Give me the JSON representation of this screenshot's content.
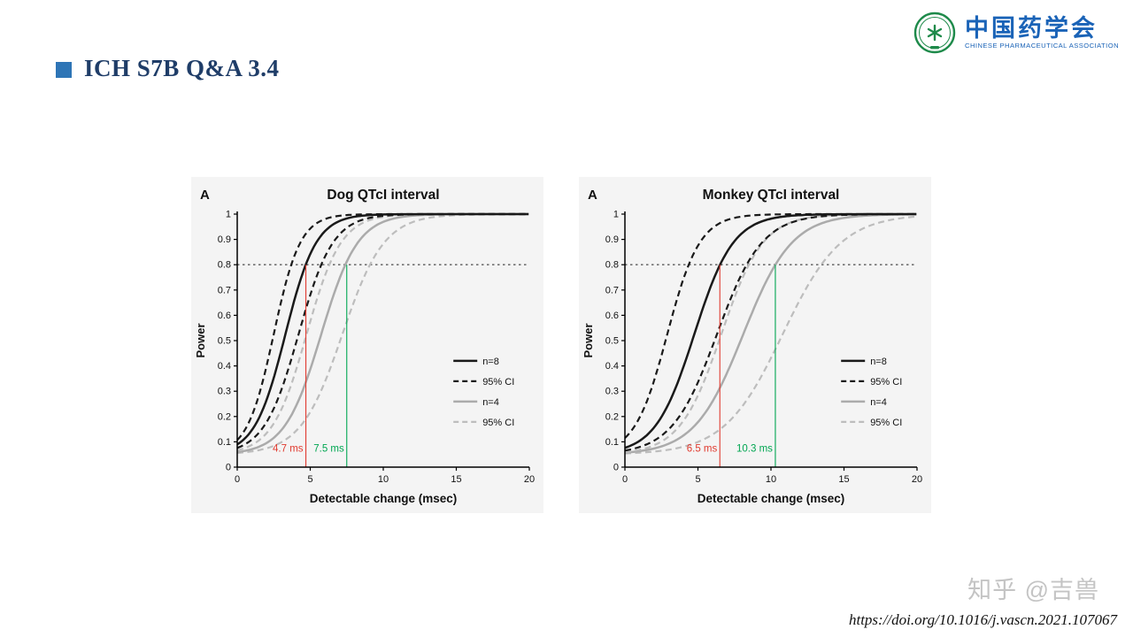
{
  "slide": {
    "heading": "ICH S7B Q&A 3.4"
  },
  "logo": {
    "org_cn": "中国药学会",
    "org_en": "CHINESE PHARMACEUTICAL ASSOCIATION"
  },
  "watermark": "知乎 @吉兽",
  "citation": "https://doi.org/10.1016/j.vascn.2021.107067",
  "colors": {
    "heading_text": "#1f3d68",
    "bullet": "#2e75b6",
    "logo_blue": "#1a63b7",
    "logo_green": "#1e8a4a",
    "watermark_gray": "#c4c4c4",
    "panel_bg": "#f4f4f4",
    "annotation_red": "#e03a2f",
    "annotation_green": "#00a651"
  },
  "chart_data": [
    {
      "type": "line",
      "panel_label": "A",
      "title": "Dog QTcI interval",
      "xlabel": "Detectable change (msec)",
      "ylabel": "Power",
      "xlim": [
        0,
        20
      ],
      "ylim": [
        0,
        1
      ],
      "xticks": [
        0,
        5,
        10,
        15,
        20
      ],
      "yticks": [
        0,
        0.1,
        0.2,
        0.3,
        0.4,
        0.5,
        0.6,
        0.7,
        0.8,
        0.9,
        1
      ],
      "ytick_labels": [
        "0",
        "0.1",
        "0.2",
        "0.3",
        "0.4",
        "0.5",
        "0.6",
        "0.7",
        "0.8",
        "0.9",
        "1"
      ],
      "grid": false,
      "power_threshold": 0.8,
      "threshold_style": "dotted",
      "x_values": [
        0,
        1,
        2,
        3,
        4,
        5,
        6,
        7,
        8,
        9,
        10,
        11,
        12,
        13,
        14,
        15,
        16,
        17,
        18,
        19,
        20
      ],
      "series": [
        {
          "name": "95% CI upper (n=4)",
          "color": "#bdbdbd",
          "dash": "dashed",
          "width": 2.2,
          "model": {
            "base": 0.05,
            "scale": 0.95,
            "midpoint": 7.2,
            "slope": 0.7
          },
          "values": [
            0.056,
            0.062,
            0.074,
            0.098,
            0.141,
            0.218,
            0.336,
            0.492,
            0.655,
            0.79,
            0.883,
            0.938,
            0.968,
            0.984,
            0.992,
            0.996,
            0.998,
            0.999,
            1,
            1,
            1
          ]
        },
        {
          "name": "n=4",
          "color": "#ababab",
          "dash": "solid",
          "width": 2.5,
          "model": {
            "base": 0.05,
            "scale": 0.95,
            "midpoint": 5.75,
            "slope": 0.8
          },
          "values": [
            0.059,
            0.071,
            0.095,
            0.145,
            0.238,
            0.387,
            0.572,
            0.744,
            0.865,
            0.934,
            0.969,
            0.986,
            0.994,
            0.997,
            0.999,
            1,
            1,
            1,
            1,
            1,
            1
          ]
        },
        {
          "name": "95% CI lower (n=4)",
          "color": "#bdbdbd",
          "dash": "dashed",
          "width": 2.2,
          "model": {
            "base": 0.05,
            "scale": 0.95,
            "midpoint": 4.75,
            "slope": 0.85
          },
          "values": [
            0.066,
            0.088,
            0.133,
            0.225,
            0.378,
            0.575,
            0.756,
            0.877,
            0.943,
            0.975,
            0.989,
            0.995,
            0.998,
            0.999,
            1,
            1,
            1,
            1,
            1,
            1,
            1
          ]
        },
        {
          "name": "95% CI upper (n=8)",
          "color": "#1a1a1a",
          "dash": "dashed",
          "width": 2.2,
          "model": {
            "base": 0.05,
            "scale": 0.95,
            "midpoint": 4.2,
            "slope": 0.85
          },
          "values": [
            0.076,
            0.109,
            0.177,
            0.302,
            0.485,
            0.68,
            0.831,
            0.919,
            0.964,
            0.984,
            0.993,
            0.997,
            0.999,
            1,
            1,
            1,
            1,
            1,
            1,
            1,
            1
          ]
        },
        {
          "name": "95% CI lower (n=8)",
          "color": "#1a1a1a",
          "dash": "dashed",
          "width": 2.2,
          "model": {
            "base": 0.05,
            "scale": 0.95,
            "midpoint": 2.5,
            "slope": 1.1
          },
          "values": [
            0.107,
            0.203,
            0.398,
            0.652,
            0.847,
            0.943,
            0.98,
            0.993,
            0.998,
            0.999,
            1,
            1,
            1,
            1,
            1,
            1,
            1,
            1,
            1,
            1,
            1
          ]
        },
        {
          "name": "n=8",
          "color": "#1a1a1a",
          "dash": "solid",
          "width": 2.5,
          "model": {
            "base": 0.05,
            "scale": 0.95,
            "midpoint": 3.3,
            "slope": 0.95
          },
          "values": [
            0.09,
            0.146,
            0.264,
            0.458,
            0.677,
            0.842,
            0.932,
            0.973,
            0.989,
            0.996,
            0.998,
            0.999,
            1,
            1,
            1,
            1,
            1,
            1,
            1,
            1,
            1
          ]
        }
      ],
      "annotations": [
        {
          "x": 4.7,
          "label": "4.7 ms",
          "color": "#e03a2f",
          "top": 0.8
        },
        {
          "x": 7.5,
          "label": "7.5 ms",
          "color": "#00a651",
          "top": 0.8
        }
      ],
      "legend": [
        {
          "label": "n=8",
          "color": "#1a1a1a",
          "dash": "solid",
          "width": 2.5
        },
        {
          "label": "95% CI",
          "color": "#1a1a1a",
          "dash": "dashed",
          "width": 2.2
        },
        {
          "label": "n=4",
          "color": "#ababab",
          "dash": "solid",
          "width": 2.5
        },
        {
          "label": "95% CI",
          "color": "#bdbdbd",
          "dash": "dashed",
          "width": 2.2
        }
      ],
      "legend_position": "inside-right"
    },
    {
      "type": "line",
      "panel_label": "A",
      "title": "Monkey QTcI interval",
      "xlabel": "Detectable change (msec)",
      "ylabel": "Power",
      "xlim": [
        0,
        20
      ],
      "ylim": [
        0,
        1
      ],
      "xticks": [
        0,
        5,
        10,
        15,
        20
      ],
      "yticks": [
        0,
        0.1,
        0.2,
        0.3,
        0.4,
        0.5,
        0.6,
        0.7,
        0.8,
        0.9,
        1
      ],
      "ytick_labels": [
        "0",
        "0.1",
        "0.2",
        "0.3",
        "0.4",
        "0.5",
        "0.6",
        "0.7",
        "0.8",
        "0.9",
        "1"
      ],
      "grid": false,
      "power_threshold": 0.8,
      "threshold_style": "dotted",
      "x_values": [
        0,
        1,
        2,
        3,
        4,
        5,
        6,
        7,
        8,
        9,
        10,
        11,
        12,
        13,
        14,
        15,
        16,
        17,
        18,
        19,
        20
      ],
      "series": [
        {
          "name": "95% CI upper (n=4)",
          "color": "#bdbdbd",
          "dash": "dashed",
          "width": 2.2,
          "model": {
            "base": 0.05,
            "scale": 0.95,
            "midpoint": 10.8,
            "slope": 0.5
          },
          "values": [
            0.054,
            0.057,
            0.062,
            0.069,
            0.081,
            0.099,
            0.129,
            0.174,
            0.238,
            0.325,
            0.431,
            0.549,
            0.663,
            0.763,
            0.84,
            0.896,
            0.934,
            0.959,
            0.975,
            0.985,
            0.991
          ]
        },
        {
          "name": "n=4",
          "color": "#ababab",
          "dash": "solid",
          "width": 2.5,
          "model": {
            "base": 0.05,
            "scale": 0.95,
            "midpoint": 8.1,
            "slope": 0.6
          },
          "values": [
            0.057,
            0.063,
            0.074,
            0.093,
            0.125,
            0.178,
            0.26,
            0.374,
            0.511,
            0.65,
            0.77,
            0.858,
            0.917,
            0.952,
            0.973,
            0.985,
            0.992,
            0.996,
            0.998,
            0.999,
            0.999
          ]
        },
        {
          "name": "95% CI lower (n=4)",
          "color": "#bdbdbd",
          "dash": "dashed",
          "width": 2.2,
          "model": {
            "base": 0.05,
            "scale": 0.95,
            "midpoint": 6.6,
            "slope": 0.7
          },
          "values": [
            0.059,
            0.068,
            0.087,
            0.121,
            0.183,
            0.284,
            0.427,
            0.591,
            0.741,
            0.851,
            0.92,
            0.958,
            0.979,
            0.989,
            0.995,
            0.997,
            0.999,
            1,
            1,
            1,
            1
          ]
        },
        {
          "name": "95% CI upper (n=8)",
          "color": "#1a1a1a",
          "dash": "dashed",
          "width": 2.2,
          "model": {
            "base": 0.05,
            "scale": 0.95,
            "midpoint": 6.3,
            "slope": 0.65
          },
          "values": [
            0.066,
            0.079,
            0.105,
            0.15,
            0.224,
            0.335,
            0.479,
            0.631,
            0.764,
            0.86,
            0.921,
            0.957,
            0.977,
            0.988,
            0.994,
            0.997,
            0.998,
            0.999,
            1,
            1,
            1
          ]
        },
        {
          "name": "95% CI lower (n=8)",
          "color": "#1a1a1a",
          "dash": "dashed",
          "width": 2.2,
          "model": {
            "base": 0.05,
            "scale": 0.95,
            "midpoint": 2.9,
            "slope": 0.9
          },
          "values": [
            0.115,
            0.195,
            0.343,
            0.546,
            0.743,
            0.875,
            0.945,
            0.977,
            0.99,
            0.996,
            0.998,
            0.999,
            1,
            1,
            1,
            1,
            1,
            1,
            1,
            1,
            1
          ]
        },
        {
          "name": "n=8",
          "color": "#1a1a1a",
          "dash": "solid",
          "width": 2.5,
          "model": {
            "base": 0.05,
            "scale": 0.95,
            "midpoint": 4.75,
            "slope": 0.75
          },
          "values": [
            0.076,
            0.104,
            0.157,
            0.252,
            0.395,
            0.569,
            0.733,
            0.852,
            0.924,
            0.962,
            0.982,
            0.992,
            0.996,
            0.998,
            0.999,
            1,
            1,
            1,
            1,
            1,
            1
          ]
        }
      ],
      "annotations": [
        {
          "x": 6.5,
          "label": "6.5 ms",
          "color": "#e03a2f",
          "top": 0.8
        },
        {
          "x": 10.3,
          "label": "10.3 ms",
          "color": "#00a651",
          "top": 0.8
        }
      ],
      "legend": [
        {
          "label": "n=8",
          "color": "#1a1a1a",
          "dash": "solid",
          "width": 2.5
        },
        {
          "label": "95% CI",
          "color": "#1a1a1a",
          "dash": "dashed",
          "width": 2.2
        },
        {
          "label": "n=4",
          "color": "#ababab",
          "dash": "solid",
          "width": 2.5
        },
        {
          "label": "95% CI",
          "color": "#bdbdbd",
          "dash": "dashed",
          "width": 2.2
        }
      ],
      "legend_position": "inside-right"
    }
  ]
}
